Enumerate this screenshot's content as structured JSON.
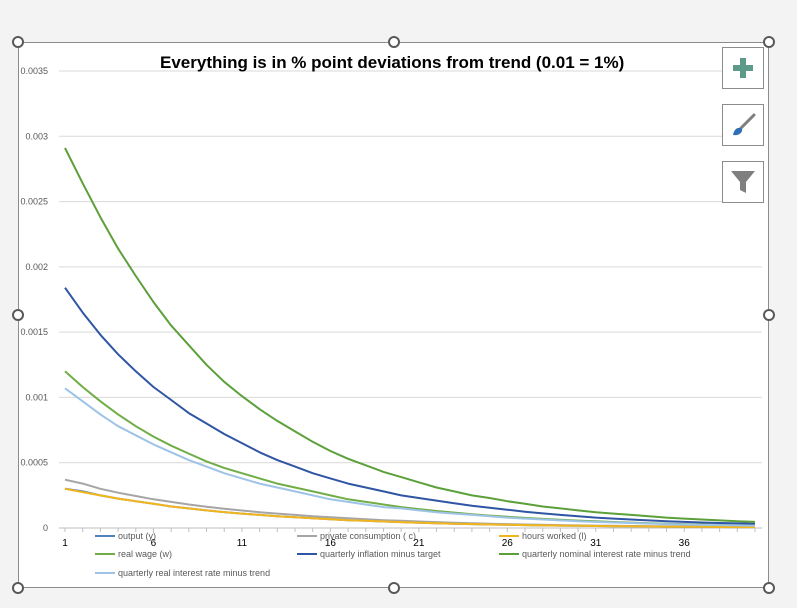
{
  "chart_data": {
    "type": "line",
    "title": "Everything is in % point deviations from trend (0.01 = 1%)",
    "xlabel": "",
    "ylabel": "",
    "x": [
      1,
      2,
      3,
      4,
      5,
      6,
      7,
      8,
      9,
      10,
      11,
      12,
      13,
      14,
      15,
      16,
      17,
      18,
      19,
      20,
      21,
      22,
      23,
      24,
      25,
      26,
      27,
      28,
      29,
      30,
      31,
      32,
      33,
      34,
      35,
      36,
      37,
      38,
      39,
      40
    ],
    "xticks": [
      "1",
      "6",
      "11",
      "16",
      "21",
      "26",
      "31",
      "36"
    ],
    "yticks": [
      "0",
      "0.0005",
      "0.001",
      "0.0015",
      "0.002",
      "0.0025",
      "0.003",
      "0.0035"
    ],
    "ylim": [
      0,
      0.0035
    ],
    "grid": true,
    "legend_position": "bottom",
    "series": [
      {
        "name": "output (y)",
        "color": "#4f81bd",
        "values": [
          0.0003,
          0.00028,
          0.00025,
          0.000225,
          0.000205,
          0.000185,
          0.000165,
          0.00015,
          0.000135,
          0.000122,
          0.00011,
          0.0001,
          9e-05,
          8.2e-05,
          7.4e-05,
          6.7e-05,
          6e-05,
          5.5e-05,
          5e-05,
          4.5e-05,
          4e-05,
          3.7e-05,
          3.3e-05,
          3e-05,
          2.7e-05,
          2.5e-05,
          2.2e-05,
          2e-05,
          1.8e-05,
          1.7e-05,
          1.5e-05,
          1.4e-05,
          1.3e-05,
          1.2e-05,
          1e-05,
          1e-05,
          9e-06,
          8e-06,
          7e-06,
          7e-06
        ]
      },
      {
        "name": "private consumption ( c)",
        "color": "#a5a5a5",
        "values": [
          0.00037,
          0.00034,
          0.0003,
          0.00027,
          0.000245,
          0.00022,
          0.0002,
          0.00018,
          0.000163,
          0.000148,
          0.000134,
          0.000121,
          0.00011,
          0.0001,
          9e-05,
          8.2e-05,
          7.4e-05,
          6.7e-05,
          6e-05,
          5.5e-05,
          5e-05,
          4.5e-05,
          4e-05,
          3.7e-05,
          3.3e-05,
          3e-05,
          2.7e-05,
          2.5e-05,
          2.2e-05,
          2e-05,
          1.8e-05,
          1.7e-05,
          1.5e-05,
          1.4e-05,
          1.3e-05,
          1.2e-05,
          1.1e-05,
          1e-05,
          9e-06,
          8e-06
        ]
      },
      {
        "name": "hours worked (l)",
        "color": "#f2b61c",
        "values": [
          0.0003,
          0.000275,
          0.00025,
          0.000225,
          0.000205,
          0.000185,
          0.000165,
          0.00015,
          0.000135,
          0.000122,
          0.00011,
          0.0001,
          9e-05,
          8.2e-05,
          7.4e-05,
          6.7e-05,
          6e-05,
          5.5e-05,
          5e-05,
          4.5e-05,
          4e-05,
          3.7e-05,
          3.3e-05,
          3e-05,
          2.7e-05,
          2.5e-05,
          2.2e-05,
          2e-05,
          1.8e-05,
          1.7e-05,
          1.5e-05,
          1.4e-05,
          1.3e-05,
          1.2e-05,
          1e-05,
          1e-05,
          9e-06,
          8e-06,
          7e-06,
          7e-06
        ]
      },
      {
        "name": "real wage (w)",
        "color": "#70ad47",
        "values": [
          0.0012,
          0.00108,
          0.00097,
          0.00087,
          0.00078,
          0.0007,
          0.00063,
          0.00057,
          0.00051,
          0.00046,
          0.00042,
          0.00038,
          0.00034,
          0.00031,
          0.00028,
          0.00025,
          0.00022,
          0.0002,
          0.00018,
          0.00016,
          0.000145,
          0.00013,
          0.000118,
          0.000106,
          9.5e-05,
          8.6e-05,
          7.7e-05,
          7e-05,
          6.3e-05,
          5.7e-05,
          5.1e-05,
          4.6e-05,
          4.1e-05,
          3.7e-05,
          3.3e-05,
          3e-05,
          2.7e-05,
          2.4e-05,
          2.2e-05,
          2e-05
        ]
      },
      {
        "name": "quarterly inflation minus target",
        "color": "#2f55a4",
        "values": [
          0.00184,
          0.00165,
          0.00148,
          0.00133,
          0.0012,
          0.00108,
          0.00098,
          0.00088,
          0.0008,
          0.00072,
          0.00065,
          0.00058,
          0.00052,
          0.00047,
          0.00042,
          0.00038,
          0.00034,
          0.00031,
          0.00028,
          0.00025,
          0.00023,
          0.00021,
          0.00019,
          0.00017,
          0.000155,
          0.00014,
          0.000125,
          0.000112,
          0.0001,
          9e-05,
          8e-05,
          7.2e-05,
          6.5e-05,
          5.8e-05,
          5.2e-05,
          4.7e-05,
          4.2e-05,
          3.8e-05,
          3.5e-05,
          3.2e-05
        ]
      },
      {
        "name": "quarterly nominal interest rate minus trend",
        "color": "#5ca03a",
        "values": [
          0.00291,
          0.00264,
          0.00238,
          0.00214,
          0.00193,
          0.00173,
          0.00155,
          0.0014,
          0.00125,
          0.00112,
          0.00101,
          0.00091,
          0.00082,
          0.00074,
          0.00066,
          0.00059,
          0.00053,
          0.00048,
          0.00043,
          0.00039,
          0.00035,
          0.00031,
          0.00028,
          0.00025,
          0.00023,
          0.000205,
          0.000185,
          0.000165,
          0.00015,
          0.000135,
          0.00012,
          0.00011,
          0.0001,
          9e-05,
          8e-05,
          7.2e-05,
          6.5e-05,
          5.8e-05,
          5.2e-05,
          4.7e-05
        ]
      },
      {
        "name": "quarterly real interest rate minus trend",
        "color": "#9dc3e6",
        "values": [
          0.00107,
          0.00097,
          0.00087,
          0.00078,
          0.00071,
          0.00064,
          0.00058,
          0.00052,
          0.00047,
          0.00042,
          0.00038,
          0.00034,
          0.00031,
          0.00028,
          0.00025,
          0.00022,
          0.0002,
          0.00018,
          0.00016,
          0.00015,
          0.000135,
          0.00012,
          0.00011,
          0.0001,
          9e-05,
          8e-05,
          7.2e-05,
          6.5e-05,
          5.8e-05,
          5.2e-05,
          4.7e-05,
          4.2e-05,
          3.8e-05,
          3.4e-05,
          3e-05,
          2.7e-05,
          2.4e-05,
          2.2e-05,
          2e-05,
          1.8e-05
        ]
      }
    ]
  },
  "icons": {
    "chart_elements": "plus-icon",
    "chart_styles": "brush-icon",
    "chart_filters": "funnel-icon",
    "accent": "#5e9a8a"
  }
}
